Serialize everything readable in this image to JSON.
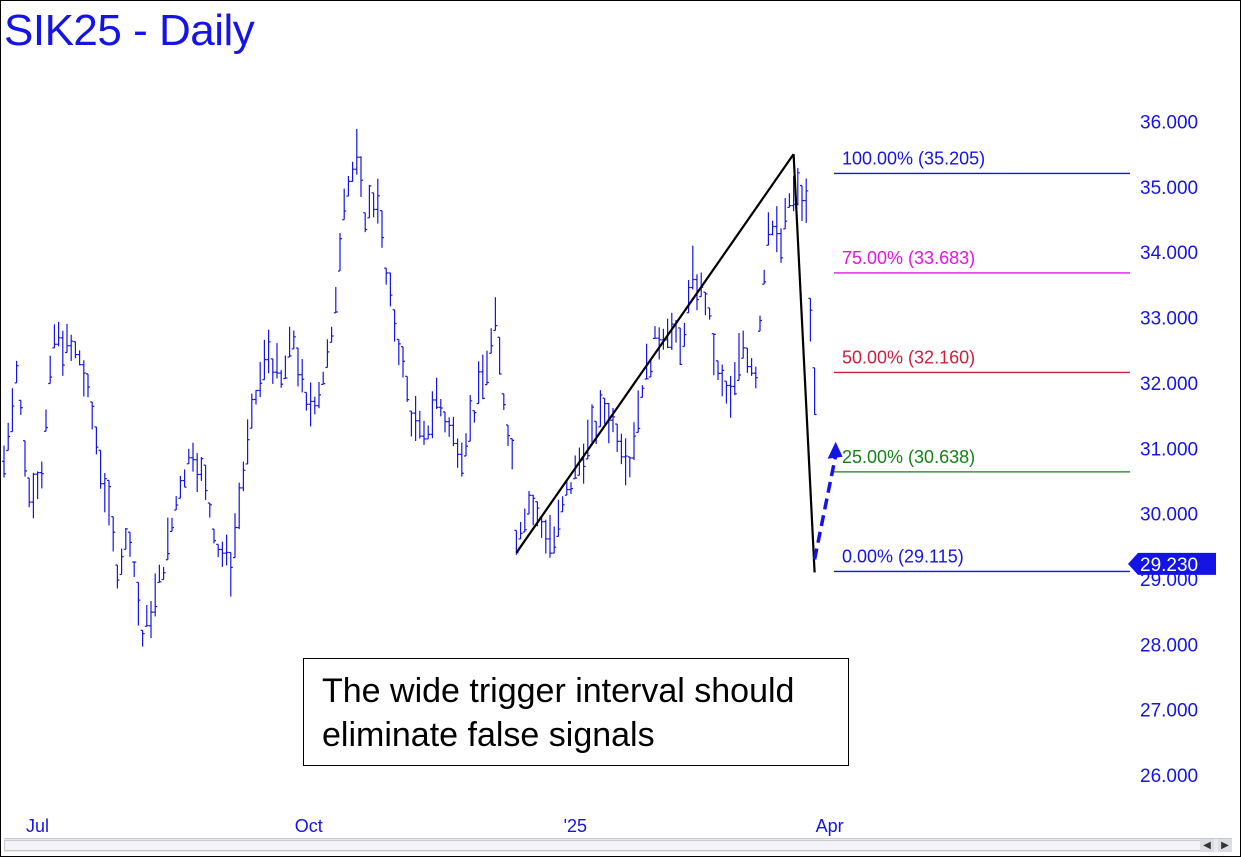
{
  "title": "SIK25 - Daily",
  "annotation": {
    "line1": "The wide trigger interval should",
    "line2": "eliminate false signals"
  },
  "chart_data": {
    "type": "bar",
    "title": "SIK25 - Daily",
    "ylim": [
      25.5,
      36.6
    ],
    "y_ticks": [
      "26.000",
      "27.000",
      "28.000",
      "29.000",
      "30.000",
      "31.000",
      "32.000",
      "33.000",
      "34.000",
      "35.000",
      "36.000"
    ],
    "y_tick_values": [
      26,
      27,
      28,
      29,
      30,
      31,
      32,
      33,
      34,
      35,
      36
    ],
    "x_ticks": [
      {
        "label": "Jul",
        "index": 0
      },
      {
        "label": "Oct",
        "index": 64
      },
      {
        "label": "'25",
        "index": 128
      },
      {
        "label": "Apr",
        "index": 188
      }
    ],
    "last_price": {
      "label": "29.230",
      "value": 29.23
    },
    "fib_levels": [
      {
        "label": "100.00% (35.205)",
        "value": 35.205,
        "color": "#1414e6"
      },
      {
        "label": "75.00% (33.683)",
        "value": 33.683,
        "color": "#e614e6"
      },
      {
        "label": "50.00% (32.160)",
        "value": 32.16,
        "color": "#d01e3c"
      },
      {
        "label": "25.00% (30.638)",
        "value": 30.638,
        "color": "#148214"
      },
      {
        "label": "0.00% (29.115)",
        "value": 29.115,
        "color": "#1414e6"
      }
    ],
    "pattern_lines": [
      {
        "from": {
          "index": 122,
          "value": 29.4
        },
        "to": {
          "index": 188,
          "value": 35.5
        }
      },
      {
        "from": {
          "index": 188,
          "value": 35.5
        },
        "to": {
          "index": 193,
          "value": 29.1
        }
      }
    ],
    "projection_arrow": {
      "from": {
        "index": 193,
        "value": 29.3
      },
      "to": {
        "index": 198,
        "value": 31.1
      },
      "color": "#1414e6"
    },
    "price_path": [
      {
        "index": 0,
        "value": 30.8
      },
      {
        "index": 3,
        "value": 32.2
      },
      {
        "index": 6,
        "value": 30.3
      },
      {
        "index": 9,
        "value": 30.7
      },
      {
        "index": 12,
        "value": 32.7
      },
      {
        "index": 18,
        "value": 32.4
      },
      {
        "index": 21,
        "value": 31.5
      },
      {
        "index": 24,
        "value": 30.4
      },
      {
        "index": 27,
        "value": 29.2
      },
      {
        "index": 30,
        "value": 29.7
      },
      {
        "index": 33,
        "value": 28.1
      },
      {
        "index": 36,
        "value": 28.7
      },
      {
        "index": 39,
        "value": 29.5
      },
      {
        "index": 42,
        "value": 30.5
      },
      {
        "index": 45,
        "value": 31.0
      },
      {
        "index": 48,
        "value": 30.4
      },
      {
        "index": 51,
        "value": 29.5
      },
      {
        "index": 54,
        "value": 29.2
      },
      {
        "index": 57,
        "value": 30.6
      },
      {
        "index": 60,
        "value": 31.8
      },
      {
        "index": 63,
        "value": 32.5
      },
      {
        "index": 66,
        "value": 32.0
      },
      {
        "index": 69,
        "value": 32.7
      },
      {
        "index": 72,
        "value": 31.6
      },
      {
        "index": 75,
        "value": 31.9
      },
      {
        "index": 78,
        "value": 32.6
      },
      {
        "index": 81,
        "value": 34.9
      },
      {
        "index": 84,
        "value": 35.4
      },
      {
        "index": 86,
        "value": 34.6
      },
      {
        "index": 89,
        "value": 34.9
      },
      {
        "index": 91,
        "value": 33.6
      },
      {
        "index": 94,
        "value": 32.6
      },
      {
        "index": 97,
        "value": 31.5
      },
      {
        "index": 100,
        "value": 31.1
      },
      {
        "index": 103,
        "value": 31.8
      },
      {
        "index": 106,
        "value": 31.3
      },
      {
        "index": 109,
        "value": 31.0
      },
      {
        "index": 112,
        "value": 31.6
      },
      {
        "index": 115,
        "value": 32.3
      },
      {
        "index": 117,
        "value": 32.9
      },
      {
        "index": 119,
        "value": 31.8
      },
      {
        "index": 121,
        "value": 30.9
      },
      {
        "index": 122,
        "value": 29.7
      },
      {
        "index": 125,
        "value": 30.2
      },
      {
        "index": 128,
        "value": 29.8
      },
      {
        "index": 131,
        "value": 29.6
      },
      {
        "index": 134,
        "value": 30.3
      },
      {
        "index": 137,
        "value": 30.8
      },
      {
        "index": 140,
        "value": 31.2
      },
      {
        "index": 143,
        "value": 31.6
      },
      {
        "index": 146,
        "value": 31.3
      },
      {
        "index": 149,
        "value": 30.8
      },
      {
        "index": 152,
        "value": 32.0
      },
      {
        "index": 155,
        "value": 32.6
      },
      {
        "index": 158,
        "value": 32.9
      },
      {
        "index": 161,
        "value": 32.5
      },
      {
        "index": 164,
        "value": 33.6
      },
      {
        "index": 167,
        "value": 33.3
      },
      {
        "index": 170,
        "value": 32.1
      },
      {
        "index": 173,
        "value": 31.7
      },
      {
        "index": 176,
        "value": 32.6
      },
      {
        "index": 179,
        "value": 32.2
      },
      {
        "index": 182,
        "value": 34.5
      },
      {
        "index": 185,
        "value": 34.1
      },
      {
        "index": 187,
        "value": 34.8
      },
      {
        "index": 189,
        "value": 34.9
      },
      {
        "index": 191,
        "value": 34.7
      },
      {
        "index": 192,
        "value": 33.0
      },
      {
        "index": 193,
        "value": 31.8
      }
    ]
  }
}
